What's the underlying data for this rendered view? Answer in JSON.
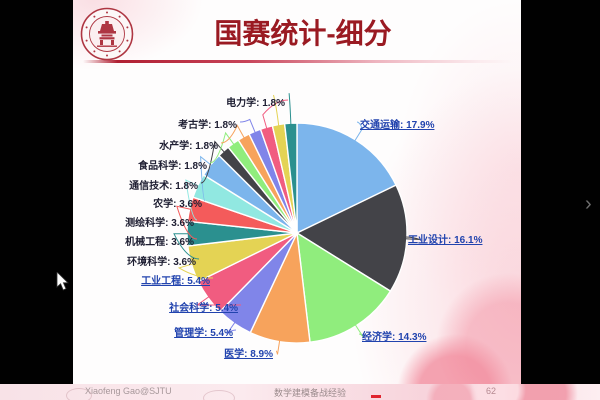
{
  "slide": {
    "title": "国赛统计-细分",
    "footer": {
      "left": "Xiaofeng Gao@SJTU",
      "center": "数学建模备战经验",
      "page": "62"
    }
  },
  "player": {
    "next_chevron": "›"
  },
  "colors": {
    "title": "#9a1a22",
    "linked_label": "#2143ae",
    "plain_label": "#1e1e32",
    "divider": "#ac142c",
    "slide_accent_pink": "#f28fa0"
  },
  "chart_data": {
    "type": "pie",
    "title": "",
    "legend_position": "none",
    "start_angle_deg": 0,
    "direction": "clockwise",
    "label_format": "{label}: {value}%",
    "slices": [
      {
        "label": "交通运输",
        "value": 17.9,
        "color": "#7cb5ec",
        "linked": true
      },
      {
        "label": "工业设计",
        "value": 16.1,
        "color": "#434348",
        "linked": true
      },
      {
        "label": "经济学",
        "value": 14.3,
        "color": "#90ed7d",
        "linked": true
      },
      {
        "label": "医学",
        "value": 8.9,
        "color": "#f7a35c",
        "linked": true
      },
      {
        "label": "管理学",
        "value": 5.4,
        "color": "#8085e9",
        "linked": true
      },
      {
        "label": "社会科学",
        "value": 5.4,
        "color": "#f15c80",
        "linked": true
      },
      {
        "label": "工业工程",
        "value": 5.4,
        "color": "#e4d354",
        "linked": true
      },
      {
        "label": "环境科学",
        "value": 3.6,
        "color": "#2b908f",
        "linked": false
      },
      {
        "label": "机械工程",
        "value": 3.6,
        "color": "#f45b5b",
        "linked": false
      },
      {
        "label": "测绘科学",
        "value": 3.6,
        "color": "#91e8e1",
        "linked": false
      },
      {
        "label": "农学",
        "value": 3.6,
        "color": "#7cb5ec",
        "linked": false
      },
      {
        "label": "通信技术",
        "value": 1.8,
        "color": "#434348",
        "linked": false
      },
      {
        "label": "食品科学",
        "value": 1.8,
        "color": "#90ed7d",
        "linked": false
      },
      {
        "label": "水产学",
        "value": 1.8,
        "color": "#f7a35c",
        "linked": false
      },
      {
        "label": "考古学",
        "value": 1.8,
        "color": "#8085e9",
        "linked": false
      },
      {
        "label": "电力学",
        "value": 1.8,
        "color": "#f15c80",
        "linked": false
      },
      {
        "label": "",
        "value": 1.8,
        "color": "#e4d354",
        "linked": false
      },
      {
        "label": "",
        "value": 1.8,
        "color": "#2b908f",
        "linked": false
      }
    ]
  }
}
